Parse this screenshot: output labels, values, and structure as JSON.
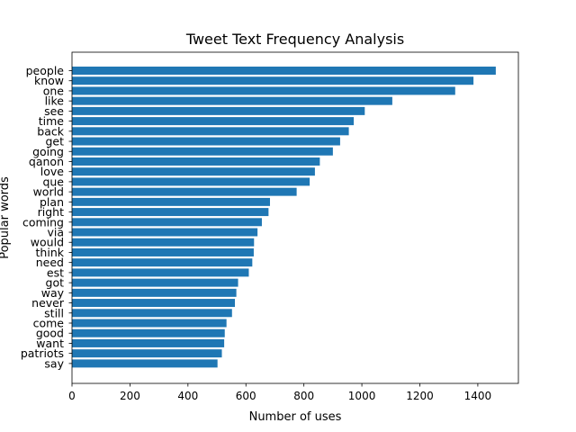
{
  "chart_data": {
    "type": "bar",
    "orientation": "horizontal",
    "title": "Tweet Text Frequency Analysis",
    "xlabel": "Number of uses",
    "ylabel": "Popular words",
    "xlim": [
      0,
      1540
    ],
    "xticks": [
      0,
      200,
      400,
      600,
      800,
      1000,
      1200,
      1400
    ],
    "grid": false,
    "bar_color": "#1f77b4",
    "categories": [
      "people",
      "know",
      "one",
      "like",
      "see",
      "time",
      "back",
      "get",
      "going",
      "qanon",
      "love",
      "que",
      "world",
      "plan",
      "right",
      "coming",
      "via",
      "would",
      "think",
      "need",
      "est",
      "got",
      "way",
      "never",
      "still",
      "come",
      "good",
      "want",
      "patriots",
      "say"
    ],
    "values": [
      1462,
      1385,
      1322,
      1105,
      1010,
      972,
      955,
      925,
      900,
      855,
      838,
      820,
      775,
      683,
      678,
      655,
      640,
      628,
      627,
      622,
      610,
      573,
      567,
      562,
      552,
      533,
      527,
      525,
      517,
      502
    ]
  }
}
